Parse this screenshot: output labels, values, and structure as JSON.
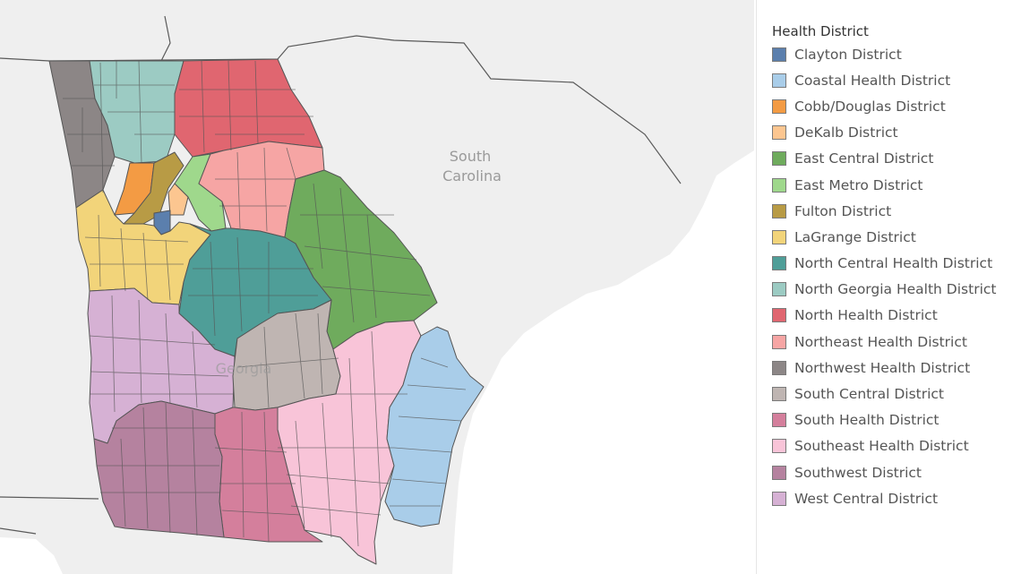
{
  "map": {
    "place_labels": {
      "state_south_line1": "South",
      "state_south_line2": "Carolina",
      "georgia": "Georgia"
    }
  },
  "legend": {
    "title": "Health District",
    "items": [
      {
        "label": "Clayton District",
        "color": "#5b7fad"
      },
      {
        "label": "Coastal Health District",
        "color": "#a9cde9"
      },
      {
        "label": "Cobb/Douglas District",
        "color": "#f39b44"
      },
      {
        "label": "DeKalb District",
        "color": "#fcc690"
      },
      {
        "label": "East Central District",
        "color": "#6fab5d"
      },
      {
        "label": "East Metro District",
        "color": "#9fd88c"
      },
      {
        "label": "Fulton District",
        "color": "#b89b45"
      },
      {
        "label": "LaGrange District",
        "color": "#f2d47a"
      },
      {
        "label": "North Central Health District",
        "color": "#4f9e98"
      },
      {
        "label": "North Georgia Health District",
        "color": "#9ccbc3"
      },
      {
        "label": "North Health District",
        "color": "#e06670"
      },
      {
        "label": "Northeast Health District",
        "color": "#f6a5a4"
      },
      {
        "label": "Northwest Health District",
        "color": "#8c8686"
      },
      {
        "label": "South Central District",
        "color": "#bfb5b2"
      },
      {
        "label": "South Health District",
        "color": "#d47f9c"
      },
      {
        "label": "Southeast Health District",
        "color": "#f8c4d8"
      },
      {
        "label": "Southwest District",
        "color": "#b5829f"
      },
      {
        "label": "West Central District",
        "color": "#d6b1d4"
      }
    ]
  }
}
